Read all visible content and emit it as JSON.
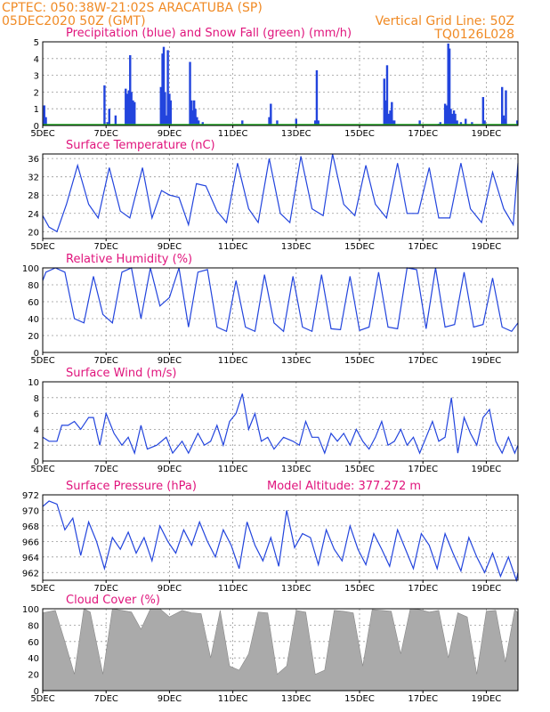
{
  "header": {
    "left_line1": "CPTEC:   050:38W-21:02S   ARACATUBA (SP)",
    "left_line2": "05DEC2020 50Z (GMT)",
    "right_line1": "Vertical Grid Line: 50Z",
    "right_line2": "TQ0126L028"
  },
  "colors": {
    "header": "#f08a24",
    "title": "#e0147c",
    "line": "#2244dd",
    "snow": "#22aa22",
    "cloud": "#aaaaaa"
  },
  "x_axis": {
    "range": [
      5,
      20
    ],
    "ticks": [
      5,
      7,
      9,
      11,
      13,
      15,
      17,
      19
    ],
    "tick_labels": [
      "5DEC",
      "7DEC",
      "9DEC",
      "11DEC",
      "13DEC",
      "15DEC",
      "17DEC",
      "19DEC"
    ]
  },
  "chart_data": [
    {
      "id": "precip",
      "type": "bar",
      "title": "Precipitation (blue) and Snow Fall (green) (mm/h)",
      "ylim": [
        0,
        5
      ],
      "yticks": [
        0,
        1,
        2,
        3,
        4,
        5
      ],
      "series": [
        {
          "name": "Precipitation",
          "color": "#2244dd",
          "x": [
            5.05,
            5.1,
            6.95,
            7.05,
            7.1,
            7.3,
            7.62,
            7.67,
            7.72,
            7.76,
            7.8,
            7.85,
            7.9,
            8.73,
            8.78,
            8.82,
            8.86,
            8.9,
            8.95,
            9.0,
            9.04,
            9.65,
            9.7,
            9.74,
            9.78,
            9.82,
            9.87,
            9.92,
            10.05,
            11.3,
            12.15,
            12.2,
            12.4,
            13.0,
            13.6,
            13.65,
            13.7,
            15.78,
            15.83,
            15.87,
            15.92,
            15.97,
            16.02,
            16.05,
            16.1,
            16.9,
            17.5,
            17.55,
            17.7,
            17.75,
            17.8,
            17.84,
            17.88,
            17.93,
            17.98,
            18.02,
            18.08,
            18.2,
            18.35,
            18.55,
            18.9,
            18.95,
            19.5,
            19.55,
            19.58,
            19.62,
            19.98
          ],
          "values": [
            1.2,
            0.5,
            2.4,
            0.2,
            1.0,
            0.6,
            2.2,
            1.9,
            2.1,
            4.2,
            2.0,
            1.5,
            1.4,
            2.3,
            4.3,
            4.7,
            2.0,
            0.6,
            4.5,
            1.9,
            1.5,
            3.8,
            1.5,
            0.9,
            1.5,
            1.0,
            0.5,
            0.3,
            0.2,
            0.3,
            0.5,
            1.3,
            0.3,
            0.4,
            0.3,
            3.3,
            0.3,
            2.8,
            1.5,
            3.6,
            0.7,
            0.9,
            1.4,
            0.3,
            0.3,
            0.3,
            0.1,
            0.2,
            1.3,
            1.2,
            4.9,
            4.6,
            1.0,
            0.7,
            0.9,
            0.7,
            0.3,
            0.2,
            0.4,
            0.2,
            1.7,
            0.3,
            2.3,
            0.6,
            0.4,
            2.1,
            0.3
          ]
        },
        {
          "name": "Snow Fall",
          "color": "#22aa22",
          "x": [
            5,
            20
          ],
          "values": [
            0,
            0
          ]
        }
      ]
    },
    {
      "id": "temp",
      "type": "line",
      "title": "Surface Temperature (nC)",
      "ylim": [
        18.5,
        37
      ],
      "yticks": [
        20,
        24,
        28,
        32,
        36
      ],
      "series": [
        {
          "name": "",
          "color": "#2244dd",
          "x": [
            5.0,
            5.2,
            5.45,
            5.75,
            6.1,
            6.45,
            6.75,
            7.1,
            7.45,
            7.75,
            8.15,
            8.45,
            8.75,
            9.0,
            9.3,
            9.6,
            9.85,
            10.15,
            10.5,
            10.8,
            11.15,
            11.5,
            11.8,
            12.15,
            12.5,
            12.8,
            13.15,
            13.5,
            13.85,
            14.15,
            14.5,
            14.85,
            15.2,
            15.5,
            15.85,
            16.2,
            16.5,
            16.85,
            17.2,
            17.5,
            17.85,
            18.2,
            18.5,
            18.85,
            19.2,
            19.55,
            19.85,
            20.0
          ],
          "values": [
            23.5,
            21,
            20,
            26,
            34.5,
            26,
            23,
            34,
            24.5,
            23,
            34,
            23,
            29,
            28,
            27.5,
            21.5,
            30.5,
            30,
            24.5,
            22,
            35,
            25,
            22,
            36,
            24,
            22,
            36.5,
            25,
            23.5,
            37,
            26,
            23.5,
            34.5,
            26,
            23,
            35,
            24,
            24,
            34,
            23,
            23,
            35,
            25,
            22,
            33,
            25,
            21.5,
            35
          ]
        }
      ]
    },
    {
      "id": "rh",
      "type": "line",
      "title": "Relative Humidity (%)",
      "ylim": [
        0,
        100
      ],
      "yticks": [
        0,
        20,
        40,
        60,
        80,
        100
      ],
      "series": [
        {
          "name": "",
          "color": "#2244dd",
          "x": [
            5.0,
            5.1,
            5.4,
            5.7,
            6.0,
            6.3,
            6.6,
            6.9,
            7.2,
            7.5,
            7.8,
            8.1,
            8.4,
            8.7,
            9.0,
            9.3,
            9.6,
            9.9,
            10.2,
            10.5,
            10.8,
            11.1,
            11.4,
            11.7,
            12.0,
            12.3,
            12.6,
            12.9,
            13.2,
            13.5,
            13.8,
            14.1,
            14.4,
            14.7,
            15.0,
            15.3,
            15.6,
            15.9,
            16.2,
            16.5,
            16.8,
            17.1,
            17.4,
            17.7,
            18.0,
            18.3,
            18.6,
            18.9,
            19.2,
            19.5,
            19.8,
            20.0
          ],
          "values": [
            85,
            95,
            100,
            95,
            40,
            35,
            90,
            45,
            35,
            95,
            100,
            40,
            100,
            55,
            65,
            100,
            30,
            95,
            98,
            30,
            25,
            85,
            30,
            25,
            92,
            35,
            25,
            90,
            30,
            25,
            92,
            28,
            27,
            90,
            26,
            30,
            95,
            30,
            28,
            100,
            98,
            28,
            100,
            30,
            33,
            95,
            30,
            33,
            88,
            30,
            25,
            35
          ]
        }
      ]
    },
    {
      "id": "wind",
      "type": "line",
      "title": "Surface Wind (m/s)",
      "ylim": [
        0,
        10
      ],
      "yticks": [
        0,
        2,
        4,
        6,
        8,
        10
      ],
      "series": [
        {
          "name": "",
          "color": "#2244dd",
          "x": [
            5.0,
            5.2,
            5.45,
            5.6,
            5.8,
            6.0,
            6.2,
            6.45,
            6.6,
            6.8,
            7.0,
            7.25,
            7.5,
            7.7,
            7.9,
            8.1,
            8.3,
            8.6,
            8.9,
            9.1,
            9.4,
            9.6,
            9.9,
            10.1,
            10.3,
            10.5,
            10.7,
            10.9,
            11.1,
            11.3,
            11.5,
            11.7,
            11.9,
            12.1,
            12.3,
            12.6,
            12.9,
            13.1,
            13.3,
            13.5,
            13.7,
            13.9,
            14.1,
            14.3,
            14.5,
            14.7,
            14.9,
            15.1,
            15.3,
            15.5,
            15.7,
            15.9,
            16.1,
            16.3,
            16.5,
            16.7,
            16.9,
            17.1,
            17.3,
            17.5,
            17.7,
            17.9,
            18.1,
            18.3,
            18.5,
            18.7,
            18.9,
            19.1,
            19.3,
            19.5,
            19.7,
            19.9,
            20.0
          ],
          "values": [
            3,
            2.5,
            2.5,
            4.5,
            4.5,
            5,
            4,
            5.5,
            5.5,
            2,
            6,
            3.5,
            2,
            3,
            1,
            4.5,
            1.5,
            2,
            3,
            1,
            2.5,
            1,
            3.5,
            2,
            2.5,
            4.5,
            2,
            5,
            6,
            8.5,
            4,
            6,
            2.5,
            3,
            1.5,
            3,
            2.5,
            2,
            5,
            3,
            3,
            1,
            3.5,
            2.5,
            3.5,
            2,
            4,
            2.5,
            1.5,
            3,
            5,
            2,
            2.5,
            4,
            2,
            3,
            1,
            3,
            5,
            2.5,
            3,
            8,
            1,
            5.5,
            3.5,
            2,
            5.5,
            6.5,
            2.5,
            1,
            3,
            1,
            2
          ]
        }
      ]
    },
    {
      "id": "pres",
      "type": "line",
      "title": "Surface Pressure (hPa)",
      "ylim": [
        961,
        972
      ],
      "yticks": [
        962,
        964,
        966,
        968,
        970,
        972
      ],
      "series": [
        {
          "name": "",
          "color": "#2244dd",
          "x": [
            5.0,
            5.2,
            5.45,
            5.7,
            5.95,
            6.2,
            6.45,
            6.7,
            6.95,
            7.2,
            7.45,
            7.7,
            7.95,
            8.2,
            8.45,
            8.7,
            8.95,
            9.2,
            9.45,
            9.7,
            9.95,
            10.2,
            10.45,
            10.7,
            10.95,
            11.2,
            11.45,
            11.7,
            11.95,
            12.2,
            12.45,
            12.7,
            12.95,
            13.2,
            13.45,
            13.7,
            13.95,
            14.2,
            14.45,
            14.7,
            14.95,
            15.2,
            15.45,
            15.7,
            15.95,
            16.2,
            16.45,
            16.7,
            16.95,
            17.2,
            17.45,
            17.7,
            17.95,
            18.2,
            18.45,
            18.7,
            18.95,
            19.2,
            19.45,
            19.7,
            19.95,
            20.0
          ],
          "values": [
            970.5,
            971.2,
            970.8,
            967.5,
            969,
            964.2,
            968.5,
            966,
            962.5,
            966.5,
            965,
            967.2,
            964.5,
            966.5,
            963.5,
            968,
            966,
            964.5,
            967.5,
            965.5,
            968.5,
            966,
            964,
            967.5,
            965.5,
            962.5,
            968.5,
            965.5,
            963.5,
            966.5,
            962.8,
            970,
            965.2,
            967,
            966.5,
            963,
            967.5,
            965,
            963.5,
            968,
            965,
            963,
            967,
            965,
            962.8,
            967.5,
            965,
            962.5,
            967,
            965.5,
            962.5,
            967,
            964.5,
            962.2,
            966.5,
            964,
            962,
            964.5,
            961.5,
            964,
            960.5,
            962
          ]
        }
      ]
    },
    {
      "id": "cloud",
      "type": "area",
      "title": "Cloud Cover (%)",
      "ylim": [
        0,
        100
      ],
      "yticks": [
        0,
        20,
        40,
        60,
        80,
        100
      ],
      "series": [
        {
          "name": "",
          "color": "#aaaaaa",
          "x": [
            5.0,
            5.4,
            5.7,
            6.0,
            6.3,
            6.5,
            6.9,
            7.2,
            7.5,
            7.8,
            8.1,
            8.4,
            8.7,
            9.0,
            9.4,
            9.7,
            10.0,
            10.3,
            10.6,
            10.9,
            11.2,
            11.5,
            11.8,
            12.1,
            12.4,
            12.7,
            13.0,
            13.3,
            13.6,
            13.9,
            14.2,
            14.5,
            14.8,
            15.1,
            15.4,
            15.7,
            16.0,
            16.3,
            16.6,
            16.9,
            17.2,
            17.5,
            17.8,
            18.1,
            18.4,
            18.7,
            19.0,
            19.3,
            19.6,
            19.9,
            20.0
          ],
          "values": [
            95,
            98,
            60,
            20,
            100,
            96,
            20,
            100,
            98,
            96,
            75,
            100,
            100,
            90,
            98,
            95,
            94,
            40,
            98,
            30,
            25,
            45,
            96,
            95,
            20,
            30,
            98,
            96,
            20,
            25,
            98,
            97,
            95,
            30,
            99,
            98,
            97,
            45,
            100,
            99,
            96,
            98,
            40,
            95,
            90,
            20,
            97,
            98,
            35,
            99,
            95
          ]
        }
      ]
    }
  ],
  "panel_extras": {
    "pressure_altitude": "Model Altitude: 377.272 m"
  }
}
